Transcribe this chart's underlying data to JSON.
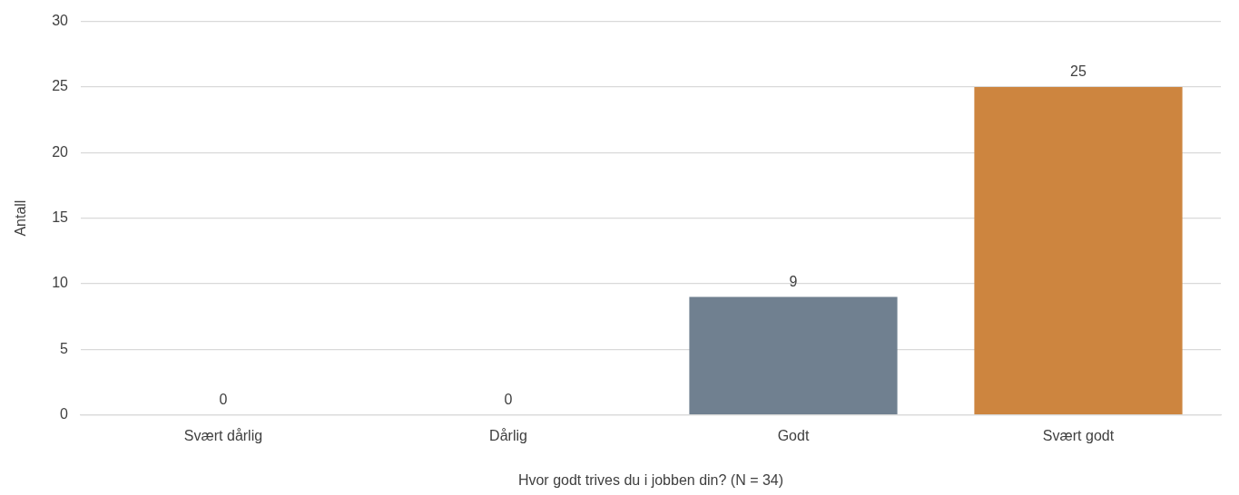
{
  "chart_data": {
    "type": "bar",
    "xlabel": "Hvor godt trives du i jobben din? (N = 34)",
    "ylabel": "Antall",
    "categories": [
      "Svært dårlig",
      "Dårlig",
      "Godt",
      "Svært godt"
    ],
    "values": [
      0,
      0,
      9,
      25
    ],
    "colors": [
      "#708090",
      "#708090",
      "#708090",
      "#cd853f"
    ],
    "ylim": [
      0,
      30
    ],
    "yticks": [
      0,
      5,
      10,
      15,
      20,
      25,
      30
    ],
    "grid": "y",
    "data_labels": true,
    "legend": false
  }
}
